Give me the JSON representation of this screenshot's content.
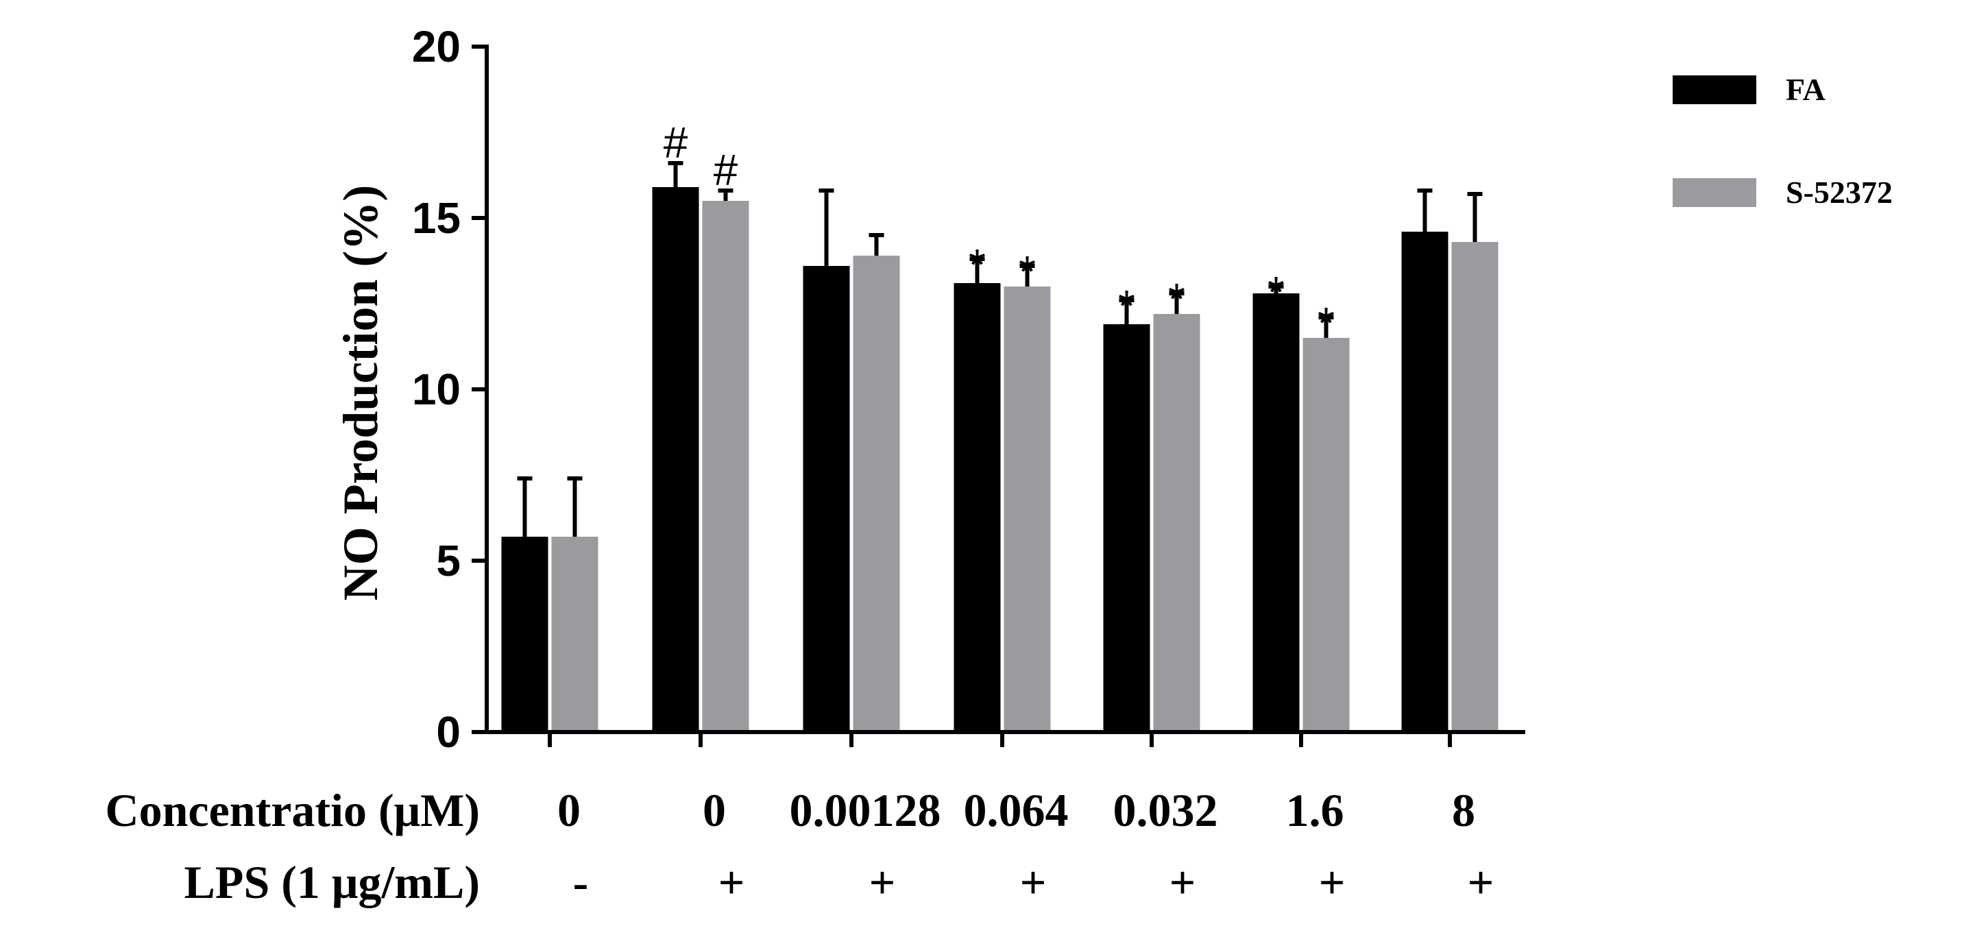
{
  "chart_data": {
    "type": "bar",
    "ylabel": "NO Production (%)",
    "ylim": [
      0,
      20
    ],
    "yticks": [
      0,
      5,
      10,
      15,
      20
    ],
    "grid": false,
    "legend_position": "top-right",
    "series": [
      {
        "name": "FA",
        "color": "#000000",
        "values": [
          5.7,
          15.9,
          13.6,
          13.1,
          11.9,
          12.8,
          14.6
        ],
        "errors": [
          1.7,
          0.7,
          2.2,
          0.7,
          0.7,
          0.2,
          1.2
        ],
        "annotations": [
          "",
          "#",
          "",
          "*",
          "*",
          "*",
          ""
        ]
      },
      {
        "name": "S-52372",
        "color": "#9b9b9f",
        "values": [
          5.7,
          15.5,
          13.9,
          13.0,
          12.2,
          11.5,
          14.3
        ],
        "errors": [
          1.7,
          0.3,
          0.6,
          0.6,
          0.6,
          0.6,
          1.4
        ],
        "annotations": [
          "",
          "#",
          "",
          "*",
          "*",
          "*",
          ""
        ]
      }
    ],
    "row_labels": {
      "concentration_label": "Concentratio (μM)",
      "concentration_values": [
        "0",
        "0",
        "0.00128",
        "0.064",
        "0.032",
        "1.6",
        "8"
      ],
      "lps_label": "LPS (1 μg/mL)",
      "lps_values": [
        "-",
        "+",
        "+",
        "+",
        "+",
        "+",
        "+"
      ]
    }
  }
}
